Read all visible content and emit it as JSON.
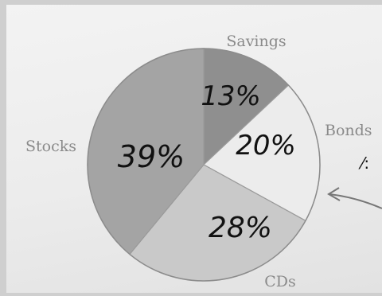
{
  "chart_data": {
    "type": "pie",
    "slices": [
      {
        "label": "Savings",
        "value": 13,
        "value_label": "13%",
        "color": "#8f8f8f"
      },
      {
        "label": "Bonds",
        "value": 20,
        "value_label": "20%",
        "color": "#ececec"
      },
      {
        "label": "CDs",
        "value": 28,
        "value_label": "28%",
        "color": "#c9c9c9"
      },
      {
        "label": "Stocks",
        "value": 39,
        "value_label": "39%",
        "color": "#a4a4a4"
      }
    ],
    "start_angle_deg": 0,
    "direction": "clockwise"
  },
  "annotations": {
    "handwritten_mark": "⁄:"
  }
}
